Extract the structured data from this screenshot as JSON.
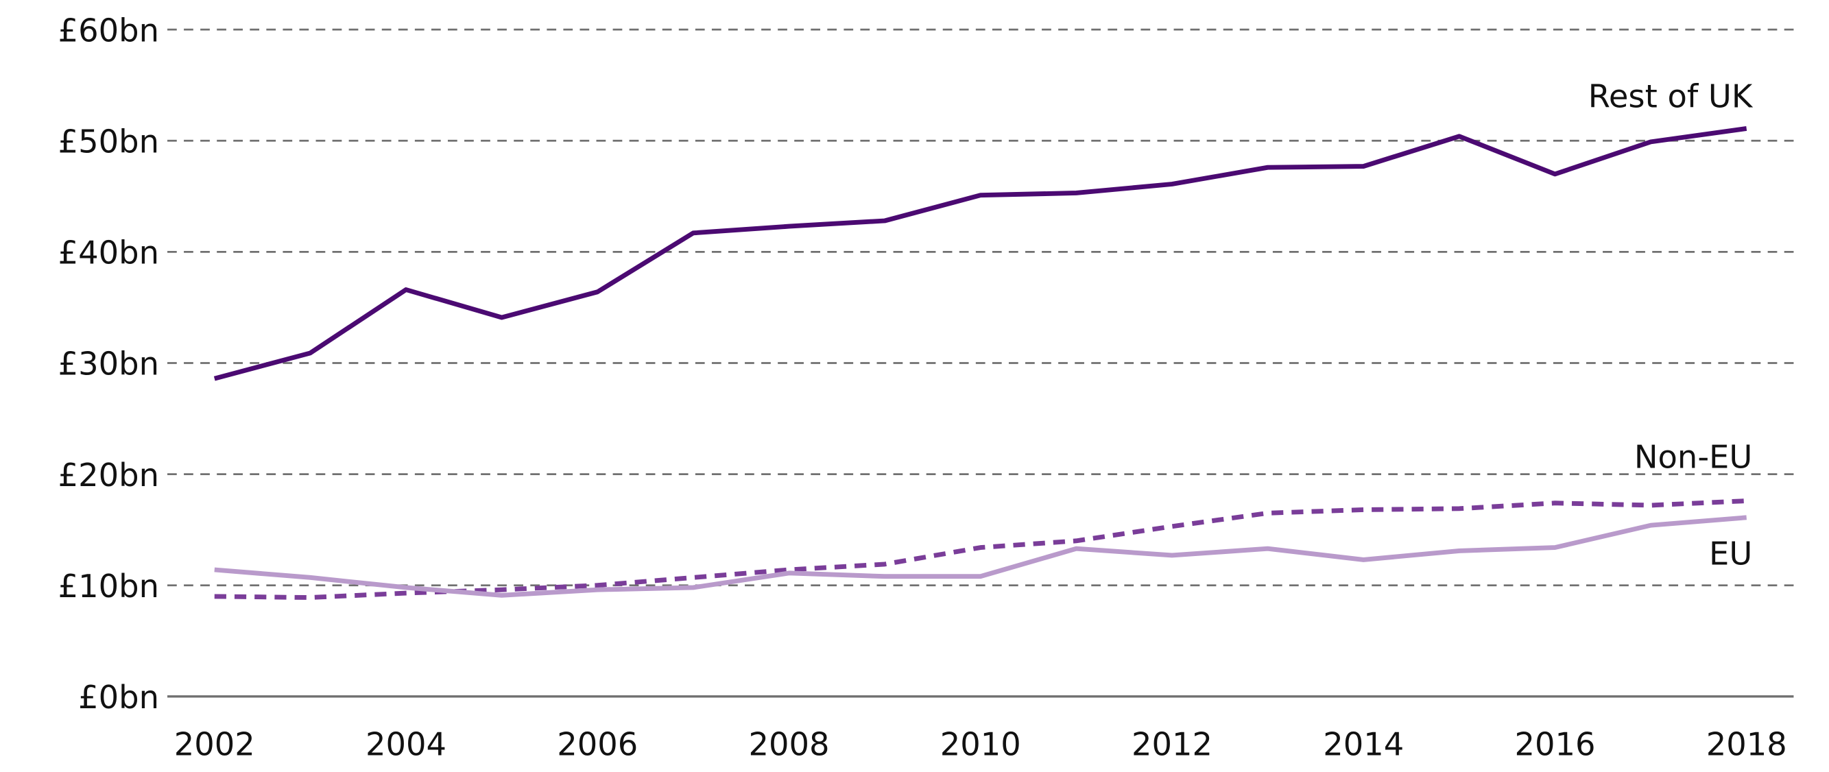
{
  "chart_data": {
    "type": "line",
    "title": "",
    "xlabel": "",
    "ylabel": "",
    "x": [
      2002,
      2003,
      2004,
      2005,
      2006,
      2007,
      2008,
      2009,
      2010,
      2011,
      2012,
      2013,
      2014,
      2015,
      2016,
      2017,
      2018
    ],
    "x_ticks": [
      "2002",
      "2004",
      "2006",
      "2008",
      "2010",
      "2012",
      "2014",
      "2016",
      "2018"
    ],
    "y_ticks": [
      "£0bn",
      "£10bn",
      "£20bn",
      "£30bn",
      "£40bn",
      "£50bn",
      "£60bn"
    ],
    "ylim": [
      0,
      60
    ],
    "grid": "horizontal dashed",
    "series": [
      {
        "name": "Rest of UK",
        "color": "#4b0a72",
        "style": "solid",
        "values": [
          28.6,
          30.9,
          36.6,
          34.1,
          36.4,
          41.7,
          42.3,
          42.8,
          45.1,
          45.3,
          46.1,
          47.6,
          47.7,
          50.4,
          47.0,
          49.9,
          51.1
        ]
      },
      {
        "name": "Non-EU",
        "color": "#7a3d99",
        "style": "dashed",
        "values": [
          9.0,
          8.9,
          9.3,
          9.6,
          10.0,
          10.7,
          11.4,
          11.9,
          13.4,
          14.0,
          15.3,
          16.5,
          16.8,
          16.9,
          17.4,
          17.2,
          17.6
        ]
      },
      {
        "name": "EU",
        "color": "#b99acb",
        "style": "solid",
        "values": [
          11.4,
          10.7,
          9.8,
          9.1,
          9.6,
          9.8,
          11.1,
          10.8,
          10.8,
          13.3,
          12.7,
          13.3,
          12.3,
          13.1,
          13.4,
          15.4,
          16.1
        ]
      }
    ],
    "labels": {
      "rest_of_uk": "Rest of UK",
      "non_eu": "Non-EU",
      "eu": "EU"
    }
  }
}
